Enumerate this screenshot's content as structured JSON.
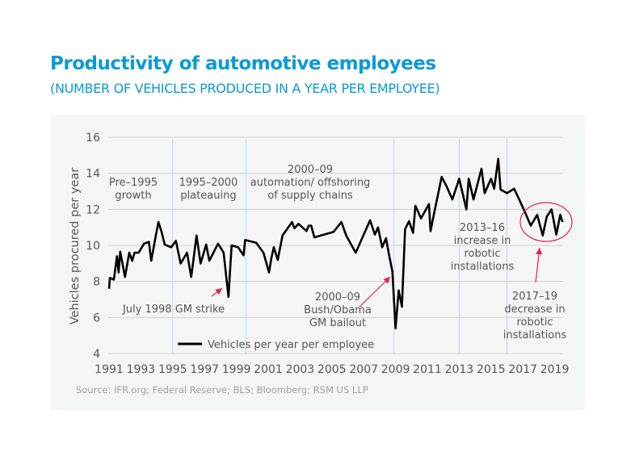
{
  "title": "Productivity of automotive employees",
  "subtitle": "(NUMBER OF VEHICLES PRODUCED IN A YEAR PER EMPLOYEE)",
  "source": "Source: IFR.org; Federal Reserve; BLS; Bloomberg; RSM US LLP",
  "colors": {
    "title": "#0a9ad7",
    "line": "#000000",
    "period_lines": "#b8dcef",
    "annotation_arrow": "#e8204e",
    "panel": "#f4f5f5"
  },
  "chart_data": {
    "type": "line",
    "ylabel": "Vehicles procured per year",
    "xlabel": "",
    "ylim": [
      4,
      16
    ],
    "xlim": [
      1991,
      2019.5
    ],
    "y_ticks": [
      "4",
      "6",
      "8",
      "10",
      "12",
      "14",
      "16"
    ],
    "x_ticks": [
      "1991",
      "1993",
      "1995",
      "1997",
      "1999",
      "2001",
      "2003",
      "2005",
      "2007",
      "2009",
      "2011",
      "2013",
      "2015",
      "2017",
      "2019"
    ],
    "grid": "horizontal",
    "legend": {
      "placement": "bottom-center",
      "entries": [
        "Vehicles per year per employee"
      ]
    },
    "period_dividers": [
      1995,
      1999.6,
      2008.9,
      2013,
      2016
    ],
    "series": [
      {
        "name": "Vehicles per year per employee",
        "x": [
          1991.0,
          1991.05,
          1991.3,
          1991.5,
          1991.6,
          1991.7,
          1992.0,
          1992.27,
          1992.45,
          1992.6,
          1992.86,
          1993.2,
          1993.5,
          1993.65,
          1993.95,
          1994.1,
          1994.3,
          1994.5,
          1994.9,
          1995.2,
          1995.5,
          1995.9,
          1996.16,
          1996.5,
          1996.75,
          1997.1,
          1997.3,
          1997.85,
          1998.2,
          1998.5,
          1998.7,
          1999.1,
          1999.45,
          1999.55,
          2000.25,
          2000.7,
          2001.05,
          2001.2,
          2001.35,
          2001.6,
          2001.9,
          2002.5,
          2002.65,
          2002.9,
          2003.4,
          2003.55,
          2003.7,
          2003.9,
          2005.1,
          2005.6,
          2005.9,
          2006.5,
          2007.4,
          2007.7,
          2007.9,
          2008.16,
          2008.4,
          2008.6,
          2008.8,
          2009.0,
          2009.2,
          2009.4,
          2009.6,
          2009.85,
          2010.1,
          2010.25,
          2010.6,
          2011.1,
          2011.2,
          2011.5,
          2011.9,
          2012.2,
          2012.57,
          2013.0,
          2013.45,
          2013.6,
          2013.9,
          2014.4,
          2014.6,
          2015.0,
          2015.2,
          2015.45,
          2015.6,
          2016.0,
          2016.45,
          2016.85,
          2017.15,
          2017.5,
          2017.9,
          2018.25,
          2018.5,
          2018.8,
          2019.1,
          2019.35,
          2019.5
        ],
        "values": [
          7.6,
          8.2,
          8.1,
          9.4,
          8.5,
          9.65,
          8.25,
          9.6,
          9.15,
          9.6,
          9.6,
          10.1,
          10.2,
          9.15,
          10.6,
          11.3,
          10.75,
          10.05,
          9.9,
          10.25,
          9.0,
          9.6,
          8.25,
          10.55,
          9.0,
          10.05,
          9.15,
          10.1,
          9.6,
          7.15,
          10.0,
          9.9,
          9.45,
          10.3,
          10.15,
          9.6,
          8.5,
          9.3,
          9.9,
          9.2,
          10.55,
          11.3,
          10.95,
          11.2,
          10.8,
          11.1,
          11.1,
          10.45,
          10.75,
          11.3,
          10.55,
          9.6,
          11.4,
          10.6,
          11.0,
          9.9,
          10.4,
          9.45,
          8.55,
          5.4,
          7.5,
          6.6,
          10.9,
          11.35,
          10.7,
          12.2,
          11.5,
          12.3,
          10.8,
          12.1,
          13.8,
          13.3,
          12.55,
          13.7,
          12.0,
          13.7,
          12.55,
          14.25,
          12.9,
          13.7,
          13.15,
          14.8,
          13.1,
          12.9,
          13.15,
          12.4,
          11.8,
          11.1,
          11.7,
          10.55,
          11.6,
          12.0,
          10.6,
          11.7,
          11.3
        ]
      }
    ],
    "annotations": {
      "pre1995": [
        "Pre–1995",
        "growth"
      ],
      "plateau": [
        "1995–2000",
        "plateauing"
      ],
      "automation": [
        "2000–09",
        "automation/ offshoring",
        "of supply chains"
      ],
      "strike": [
        "July 1998 GM strike"
      ],
      "bailout": [
        "2000–09",
        "Bush/Obama",
        "GM bailout"
      ],
      "increase": [
        "2013–16",
        "increase in",
        "robotic",
        "installations"
      ],
      "decrease": [
        "2017–19",
        "decrease in",
        "robotic",
        "installations"
      ]
    }
  }
}
